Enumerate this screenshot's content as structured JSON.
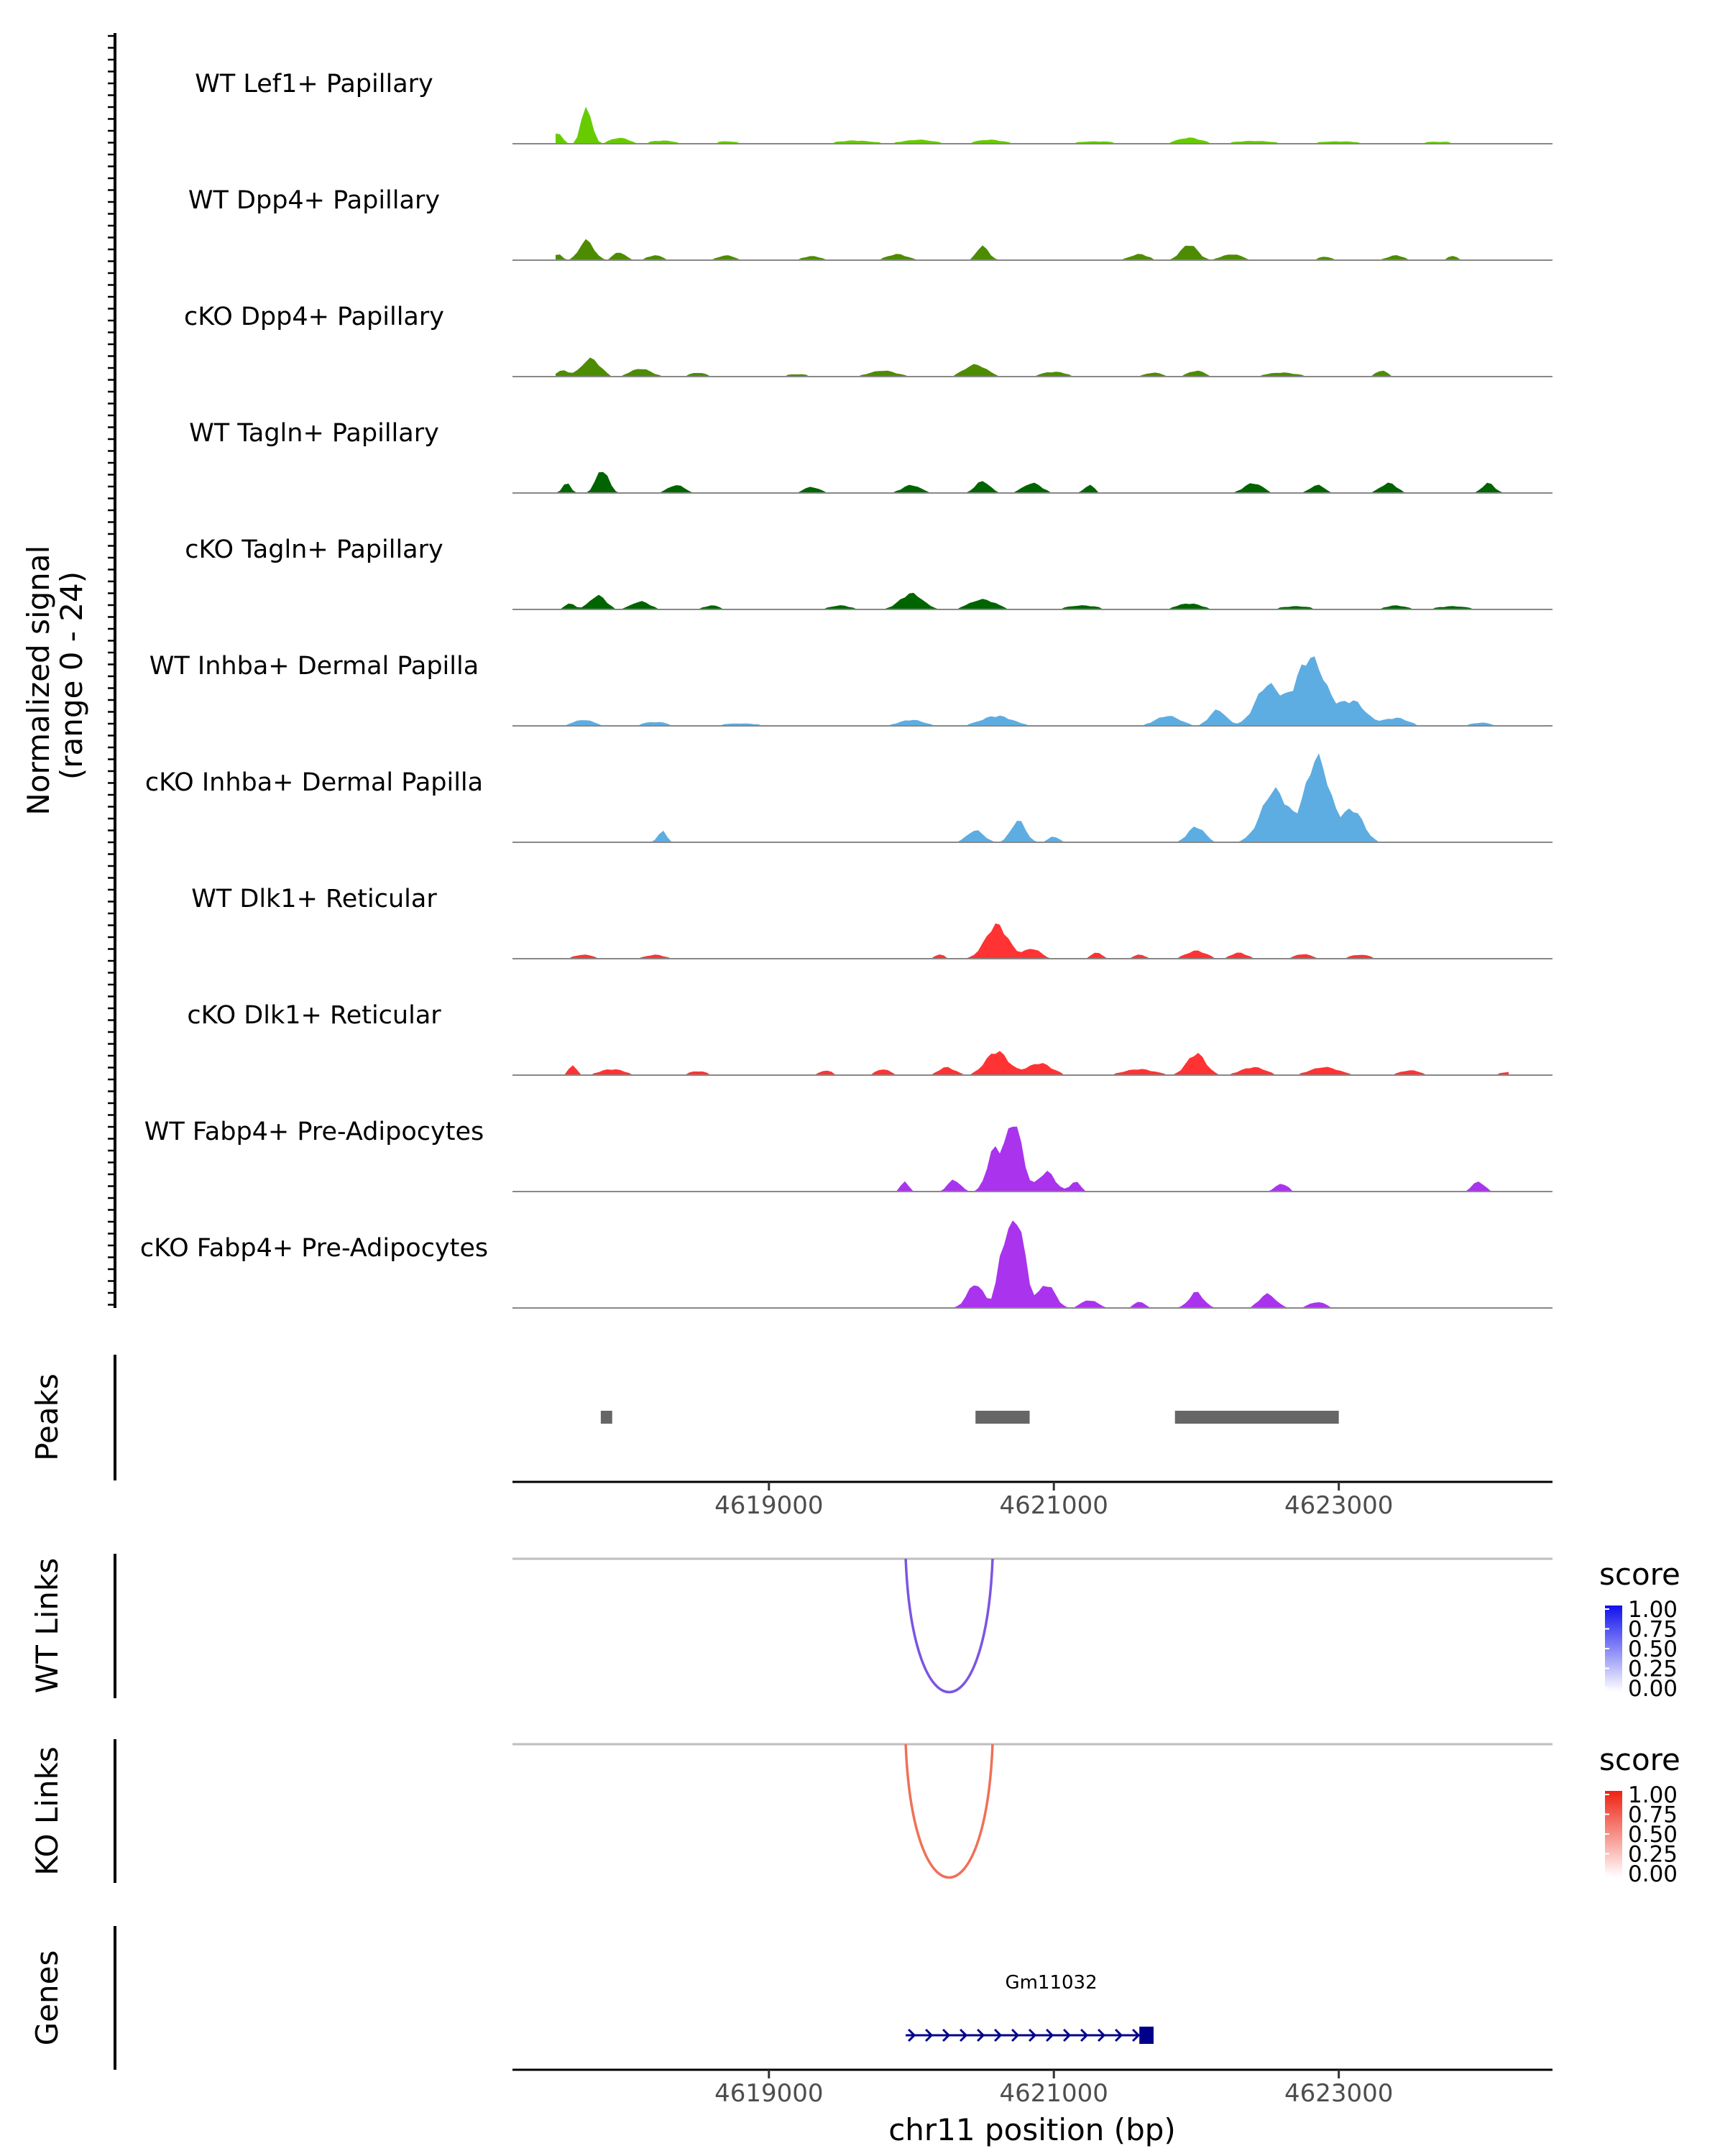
{
  "chart_data": {
    "type": "area",
    "genome": {
      "chromosome": "chr11",
      "xlim": [
        4617200,
        4624500
      ],
      "x_ticks": [
        4619000,
        4621000,
        4623000
      ],
      "x_tick_labels": [
        "4619000",
        "4621000",
        "4623000"
      ],
      "xlabel": "chr11 position (bp)"
    },
    "coverage": {
      "ylabel_line1": "Normalized signal",
      "ylabel_line2": "(range 0 - 24)",
      "ylim": [
        0,
        24
      ],
      "tracks": [
        {
          "name": "WT Lef1+ Papillary",
          "color": "#66CC00",
          "peaks": [
            [
              4617520,
              3.0,
              40
            ],
            [
              4617720,
              9.5,
              50
            ],
            [
              4617950,
              1.5,
              90
            ],
            [
              4618250,
              0.8,
              120
            ],
            [
              4618700,
              0.6,
              120
            ],
            [
              4619600,
              0.8,
              180
            ],
            [
              4620050,
              1.0,
              150
            ],
            [
              4620550,
              1.0,
              140
            ],
            [
              4621300,
              0.6,
              200
            ],
            [
              4621950,
              1.5,
              120
            ],
            [
              4622400,
              0.7,
              200
            ],
            [
              4623000,
              0.6,
              200
            ],
            [
              4623700,
              0.5,
              200
            ]
          ]
        },
        {
          "name": "WT Dpp4+ Papillary",
          "color": "#4D8C00",
          "peaks": [
            [
              4617520,
              1.5,
              40
            ],
            [
              4617720,
              5.0,
              70
            ],
            [
              4617950,
              2.0,
              60
            ],
            [
              4618200,
              1.2,
              80
            ],
            [
              4618700,
              1.2,
              80
            ],
            [
              4619300,
              1.0,
              90
            ],
            [
              4619900,
              1.5,
              100
            ],
            [
              4620500,
              3.5,
              60
            ],
            [
              4621600,
              1.5,
              90
            ],
            [
              4621950,
              4.0,
              80
            ],
            [
              4622250,
              1.5,
              100
            ],
            [
              4622900,
              0.8,
              80
            ],
            [
              4623400,
              1.2,
              80
            ],
            [
              4623800,
              1.0,
              60
            ]
          ]
        },
        {
          "name": "cKO Dpp4+ Papillary",
          "color": "#4D8C00",
          "peaks": [
            [
              4617550,
              1.5,
              60
            ],
            [
              4617750,
              4.5,
              90
            ],
            [
              4618100,
              2.0,
              100
            ],
            [
              4618500,
              1.0,
              80
            ],
            [
              4619200,
              0.6,
              120
            ],
            [
              4619800,
              1.5,
              130
            ],
            [
              4620450,
              3.0,
              110
            ],
            [
              4621000,
              1.2,
              120
            ],
            [
              4621700,
              1.0,
              80
            ],
            [
              4622000,
              1.5,
              80
            ],
            [
              4622600,
              1.0,
              150
            ],
            [
              4623300,
              1.5,
              60
            ]
          ]
        },
        {
          "name": "WT Tagln+ Papillary",
          "color": "#006400",
          "peaks": [
            [
              4617580,
              2.5,
              40
            ],
            [
              4617830,
              6.0,
              60
            ],
            [
              4618350,
              2.0,
              80
            ],
            [
              4619300,
              1.5,
              80
            ],
            [
              4620000,
              2.0,
              90
            ],
            [
              4620500,
              3.0,
              70
            ],
            [
              4620850,
              2.5,
              90
            ],
            [
              4621250,
              2.0,
              50
            ],
            [
              4622400,
              2.5,
              90
            ],
            [
              4622850,
              2.0,
              70
            ],
            [
              4623350,
              2.5,
              80
            ],
            [
              4624050,
              2.5,
              60
            ],
            [
              4624300,
              3.5,
              50
            ]
          ]
        },
        {
          "name": "cKO Tagln+ Papillary",
          "color": "#006400",
          "peaks": [
            [
              4617600,
              1.5,
              50
            ],
            [
              4617800,
              3.5,
              80
            ],
            [
              4618100,
              2.0,
              90
            ],
            [
              4618600,
              1.0,
              80
            ],
            [
              4619500,
              1.0,
              100
            ],
            [
              4620000,
              4.0,
              110
            ],
            [
              4620500,
              2.5,
              130
            ],
            [
              4621200,
              1.0,
              150
            ],
            [
              4621950,
              1.5,
              120
            ],
            [
              4622700,
              0.8,
              150
            ],
            [
              4623400,
              1.0,
              100
            ],
            [
              4623800,
              0.8,
              150
            ]
          ]
        },
        {
          "name": "WT Inhba+ Dermal Papilla",
          "color": "#5DADE2",
          "peaks": [
            [
              4617700,
              1.5,
              100
            ],
            [
              4618200,
              1.0,
              120
            ],
            [
              4618800,
              0.6,
              200
            ],
            [
              4620000,
              1.5,
              120
            ],
            [
              4620600,
              2.5,
              150
            ],
            [
              4621800,
              2.5,
              120
            ],
            [
              4622150,
              4.0,
              80
            ],
            [
              4622500,
              10.0,
              120
            ],
            [
              4622800,
              17.0,
              150
            ],
            [
              4623100,
              6.0,
              120
            ],
            [
              4623400,
              2.0,
              120
            ],
            [
              4624000,
              0.8,
              100
            ]
          ]
        },
        {
          "name": "cKO Inhba+ Dermal Papilla",
          "color": "#5DADE2",
          "peaks": [
            [
              4618250,
              3.0,
              40
            ],
            [
              4620450,
              3.0,
              80
            ],
            [
              4620750,
              5.5,
              70
            ],
            [
              4621000,
              1.5,
              50
            ],
            [
              4622000,
              4.0,
              80
            ],
            [
              4622550,
              13.0,
              130
            ],
            [
              4622850,
              21.0,
              120
            ],
            [
              4623100,
              8.0,
              100
            ]
          ]
        },
        {
          "name": "WT Dlk1+ Reticular",
          "color": "#FF3333",
          "peaks": [
            [
              4617700,
              1.0,
              100
            ],
            [
              4618200,
              1.0,
              90
            ],
            [
              4620200,
              1.0,
              60
            ],
            [
              4620600,
              8.5,
              110
            ],
            [
              4620850,
              2.5,
              80
            ],
            [
              4621300,
              1.5,
              60
            ],
            [
              4621600,
              1.0,
              60
            ],
            [
              4622000,
              2.0,
              100
            ],
            [
              4622300,
              1.5,
              80
            ],
            [
              4622750,
              1.2,
              80
            ],
            [
              4623150,
              1.0,
              100
            ],
            [
              4624300,
              0.8,
              40
            ]
          ]
        },
        {
          "name": "cKO Dlk1+ Reticular",
          "color": "#FF3333",
          "peaks": [
            [
              4617620,
              2.5,
              40
            ],
            [
              4617900,
              1.5,
              120
            ],
            [
              4618500,
              1.0,
              90
            ],
            [
              4619400,
              1.2,
              60
            ],
            [
              4619800,
              1.5,
              70
            ],
            [
              4620250,
              2.0,
              80
            ],
            [
              4620600,
              6.0,
              110
            ],
            [
              4620900,
              3.0,
              120
            ],
            [
              4621600,
              1.5,
              150
            ],
            [
              4622000,
              5.5,
              90
            ],
            [
              4622400,
              2.0,
              120
            ],
            [
              4622900,
              2.0,
              140
            ],
            [
              4623500,
              1.2,
              100
            ],
            [
              4624200,
              0.8,
              100
            ]
          ]
        },
        {
          "name": "WT Fabp4+ Pre-Adipocytes",
          "color": "#AA33EE",
          "peaks": [
            [
              4619950,
              2.5,
              40
            ],
            [
              4620300,
              3.0,
              60
            ],
            [
              4620580,
              10.0,
              70
            ],
            [
              4620720,
              17.5,
              80
            ],
            [
              4620950,
              5.0,
              80
            ],
            [
              4621150,
              2.5,
              50
            ],
            [
              4622600,
              2.0,
              60
            ],
            [
              4623980,
              2.5,
              60
            ]
          ]
        },
        {
          "name": "cKO Fabp4+ Pre-Adipocytes",
          "color": "#AA33EE",
          "peaks": [
            [
              4620450,
              6.0,
              80
            ],
            [
              4620650,
              15.0,
              60
            ],
            [
              4620750,
              21.0,
              70
            ],
            [
              4620950,
              6.0,
              80
            ],
            [
              4621250,
              2.0,
              80
            ],
            [
              4621600,
              1.5,
              60
            ],
            [
              4622000,
              4.0,
              70
            ],
            [
              4622500,
              3.5,
              80
            ],
            [
              4622850,
              1.5,
              80
            ]
          ]
        }
      ]
    },
    "peaks_track": {
      "label": "Peaks",
      "regions": [
        [
          4617820,
          4617900
        ],
        [
          4620450,
          4620830
        ],
        [
          4621850,
          4623000
        ]
      ]
    },
    "links": [
      {
        "label": "WT Links",
        "start": 4619960,
        "end": 4620570,
        "score": 0.7,
        "color": "#7B55E3",
        "legend": {
          "title": "score",
          "low_color": "#FFFFFF",
          "high_color": "#1010EE",
          "ticks": [
            "1.00",
            "0.75",
            "0.50",
            "0.25",
            "0.00"
          ]
        }
      },
      {
        "label": "KO Links",
        "start": 4619960,
        "end": 4620570,
        "score": 0.6,
        "color": "#F07057",
        "legend": {
          "title": "score",
          "low_color": "#FFFFFF",
          "high_color": "#EE2211",
          "ticks": [
            "1.00",
            "0.75",
            "0.50",
            "0.25",
            "0.00"
          ]
        }
      }
    ],
    "genes_track": {
      "label": "Genes",
      "genes": [
        {
          "name": "Gm11032",
          "start": 4619960,
          "end": 4621700,
          "strand": "+",
          "exon_start": 4621600
        }
      ]
    }
  }
}
